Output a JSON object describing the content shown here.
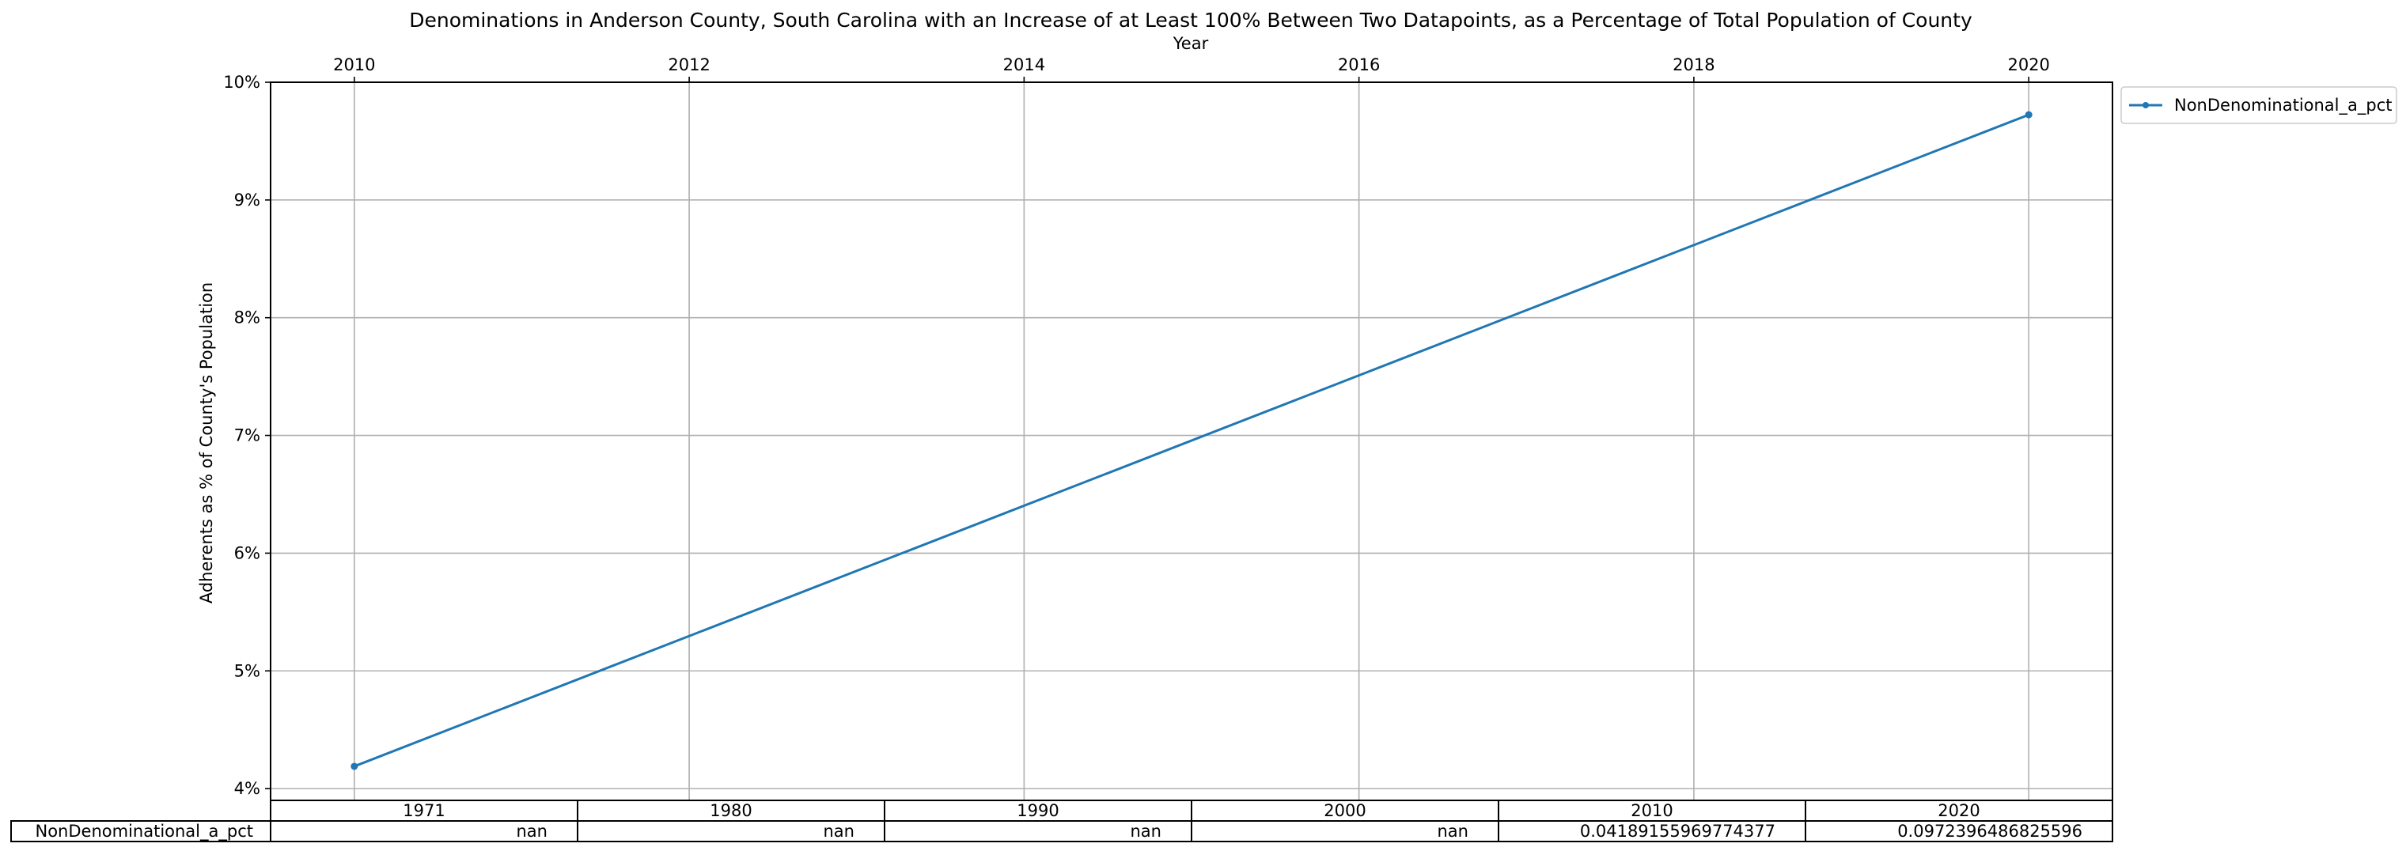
{
  "chart_data": {
    "type": "line",
    "title": "Denominations in Anderson County, South Carolina with an Increase of at Least 100% Between Two Datapoints, as a Percentage of Total Population of County",
    "xlabel": "Year",
    "ylabel": "Adherents as % of County's Population",
    "x_axis_position": "top",
    "xlim": [
      2009.5,
      2020.5
    ],
    "ylim": [
      3.9,
      10.0
    ],
    "x_ticks": [
      "2010",
      "2012",
      "2014",
      "2016",
      "2018",
      "2020"
    ],
    "y_ticks": [
      "4%",
      "5%",
      "6%",
      "7%",
      "8%",
      "9%",
      "10%"
    ],
    "grid": true,
    "legend_placement": "outside upper right",
    "series": [
      {
        "name": "NonDenominational_a_pct",
        "color": "#1f77b4",
        "marker": "point",
        "x": [
          2010,
          2020
        ],
        "y": [
          4.189155969774377,
          9.72396486825596
        ]
      }
    ],
    "table": {
      "columns": [
        "1971",
        "1980",
        "1990",
        "2000",
        "2010",
        "2020"
      ],
      "rows": [
        {
          "label": "NonDenominational_a_pct",
          "cells": [
            "nan",
            "nan",
            "nan",
            "nan",
            "0.04189155969774377",
            "0.0972396486825596"
          ]
        }
      ]
    }
  }
}
